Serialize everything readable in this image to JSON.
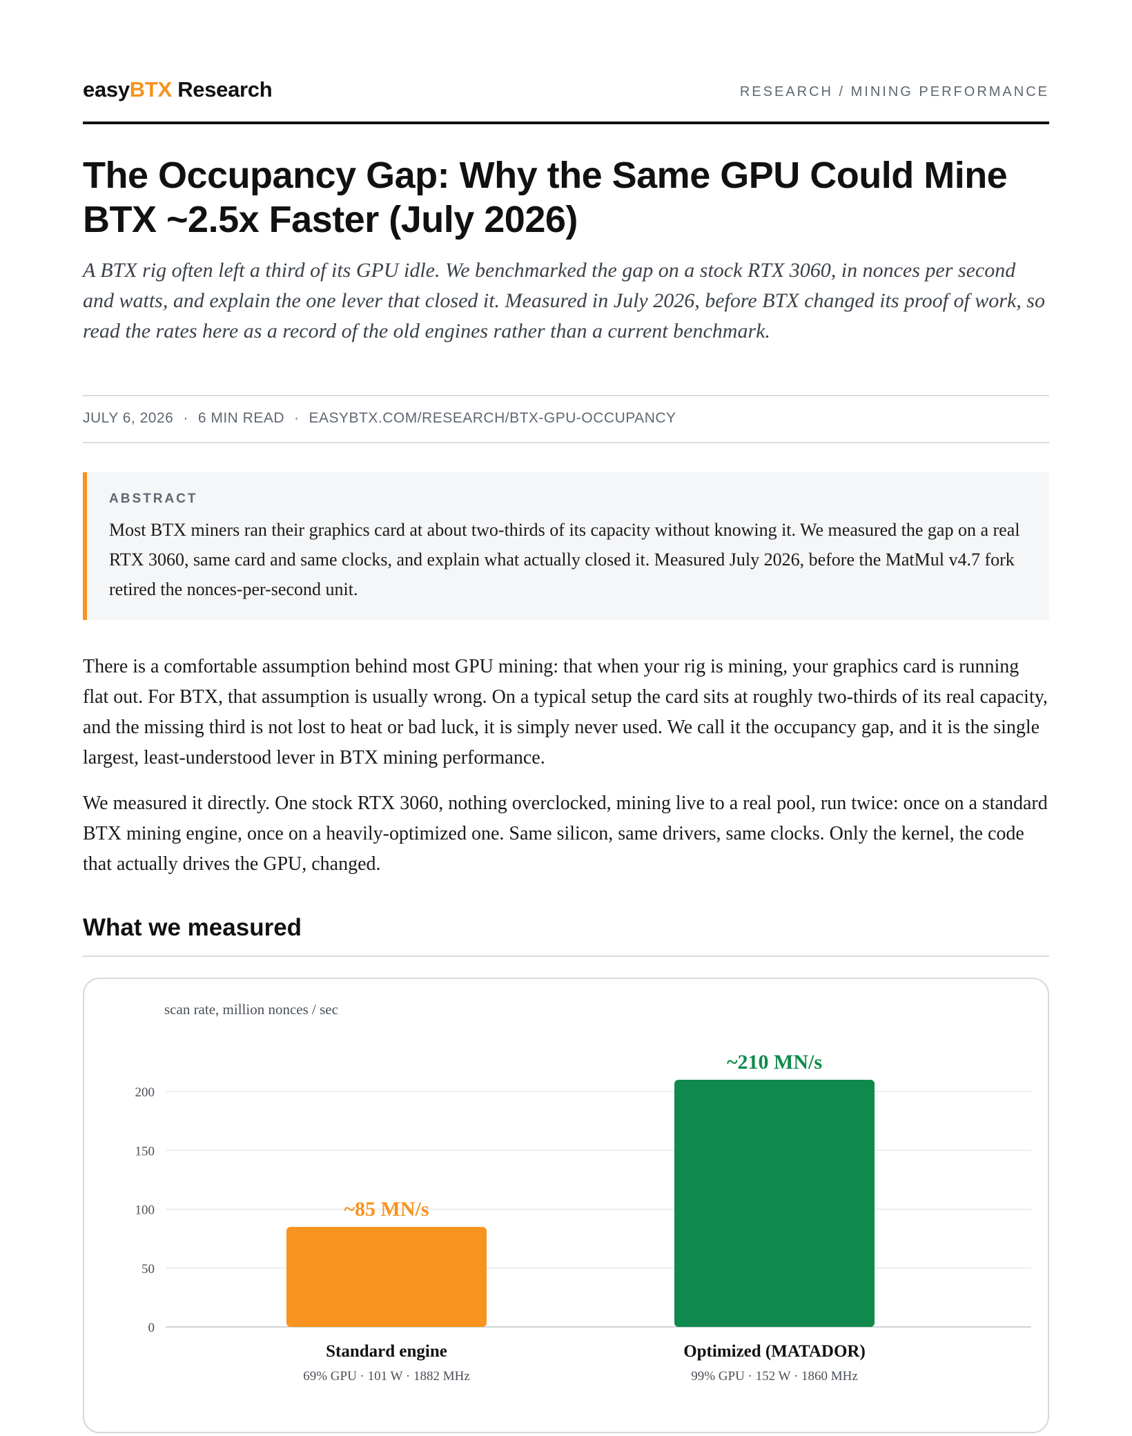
{
  "header": {
    "brand_prefix": "easy",
    "brand_accent": "BTX",
    "brand_suffix": " Research",
    "section": "RESEARCH / MINING PERFORMANCE"
  },
  "article": {
    "title": "The Occupancy Gap: Why the Same GPU Could Mine BTX ~2.5x Faster (July 2026)",
    "subtitle": "A BTX rig often left a third of its GPU idle. We benchmarked the gap on a stock RTX 3060, in nonces per second and watts, and explain the one lever that closed it. Measured in July 2026, before BTX changed its proof of work, so read the rates here as a record of the old engines rather than a current benchmark.",
    "meta": {
      "date": "JULY 6, 2026",
      "read_time": "6 MIN READ",
      "url": "EASYBTX.COM/RESEARCH/BTX-GPU-OCCUPANCY",
      "separator": "·"
    },
    "abstract": {
      "label": "ABSTRACT",
      "text": "Most BTX miners ran their graphics card at about two-thirds of its capacity without knowing it. We measured the gap on a real RTX 3060, same card and same clocks, and explain what actually closed it. Measured July 2026, before the MatMul v4.7 fork retired the nonces-per-second unit."
    },
    "paragraphs": [
      "There is a comfortable assumption behind most GPU mining: that when your rig is mining, your graphics card is running flat out. For BTX, that assumption is usually wrong. On a typical setup the card sits at roughly two-thirds of its real capacity, and the missing third is not lost to heat or bad luck, it is simply never used. We call it the occupancy gap, and it is the single largest, least-understood lever in BTX mining performance.",
      "We measured it directly. One stock RTX 3060, nothing overclocked, mining live to a real pool, run twice: once on a standard BTX mining engine, once on a heavily-optimized one. Same silicon, same drivers, same clocks. Only the kernel, the code that actually drives the GPU, changed."
    ],
    "section_heading": "What we measured"
  },
  "chart_data": {
    "type": "bar",
    "ylabel": "scan rate, million nonces / sec",
    "ylim": [
      0,
      210
    ],
    "yticks": [
      0,
      50,
      100,
      150,
      200
    ],
    "grid": true,
    "categories": [
      "Standard engine",
      "Optimized (MATADOR)"
    ],
    "values": [
      85,
      210
    ],
    "value_labels": [
      "~85 MN/s",
      "~210 MN/s"
    ],
    "sublabels": [
      "69% GPU · 101 W · 1882 MHz",
      "99% GPU · 152 W · 1860 MHz"
    ],
    "colors": [
      "#f7931e",
      "#0f8a4c"
    ]
  },
  "colors": {
    "accent": "#f7931e",
    "optimized": "#0f8a4c",
    "text": "#1a1a1a",
    "muted": "#5f6770"
  }
}
